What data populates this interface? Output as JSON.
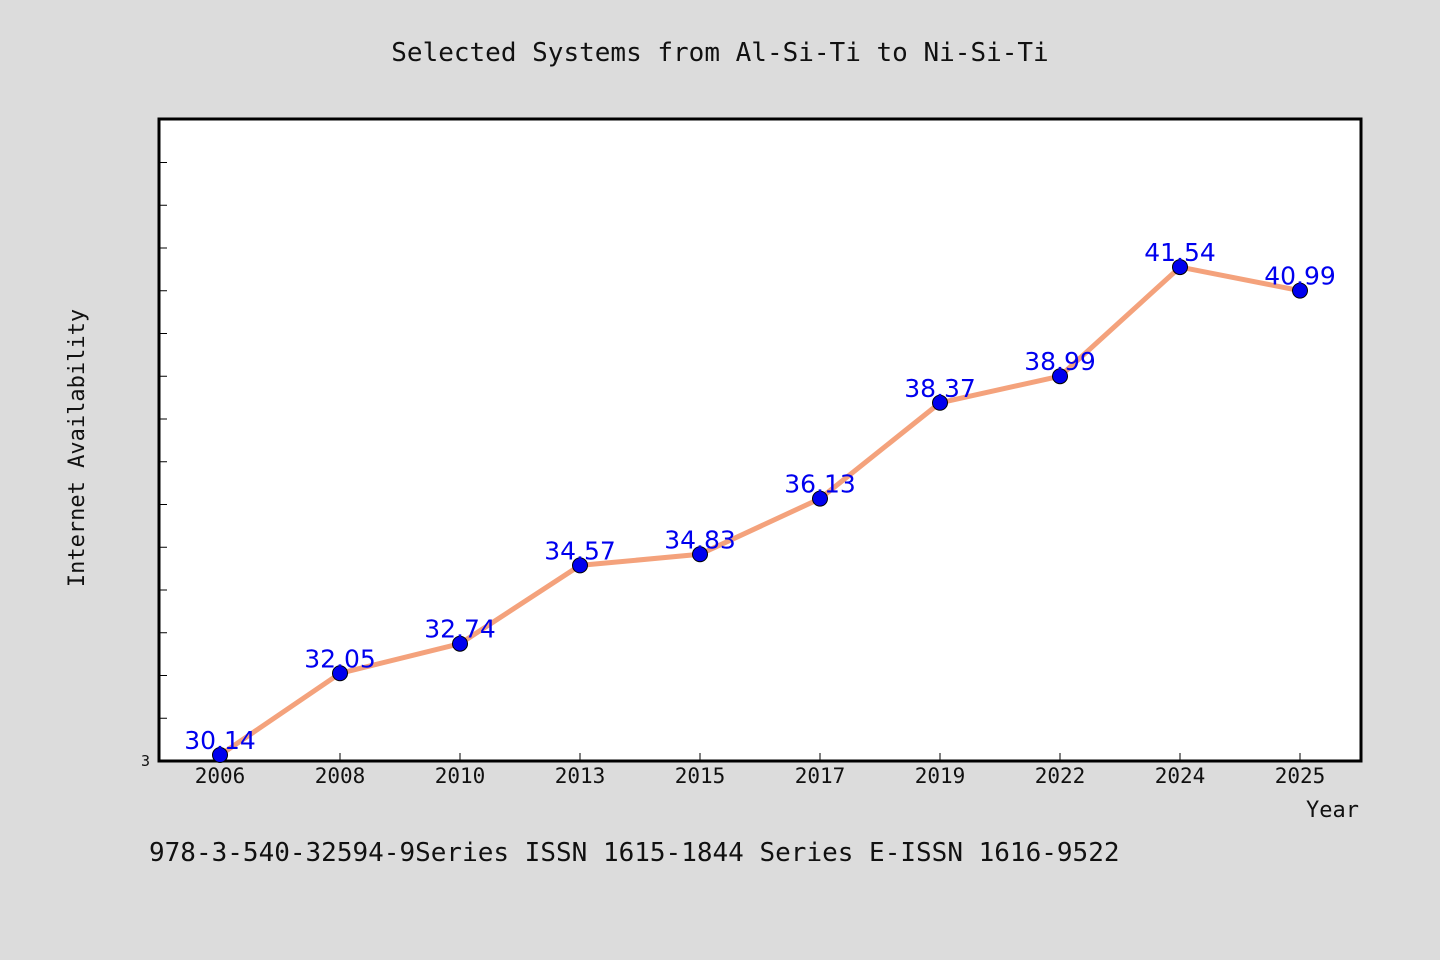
{
  "chart_data": {
    "type": "line",
    "title": "Selected Systems from Al-Si-Ti to Ni-Si-Ti",
    "xlabel": "Year",
    "ylabel": "Internet Availability",
    "categories": [
      "2006",
      "2008",
      "2010",
      "2013",
      "2015",
      "2017",
      "2019",
      "2022",
      "2024",
      "2025"
    ],
    "series": [
      {
        "values": [
          30.14,
          32.05,
          32.74,
          34.57,
          34.83,
          36.13,
          38.37,
          38.99,
          41.54,
          40.99
        ],
        "line_color": "#f4a27c",
        "marker_color": "#0000ee"
      }
    ],
    "y_tick_label": "3",
    "ylim": [
      30.0,
      45.0
    ],
    "grid": false,
    "legend": "none"
  },
  "caption": "978-3-540-32594-9Series ISSN 1615-1844 Series E-ISSN 1616-9522",
  "colors": {
    "background": "#dcdcdc",
    "plot_background": "#ffffff",
    "data_label": "#0000ee"
  }
}
